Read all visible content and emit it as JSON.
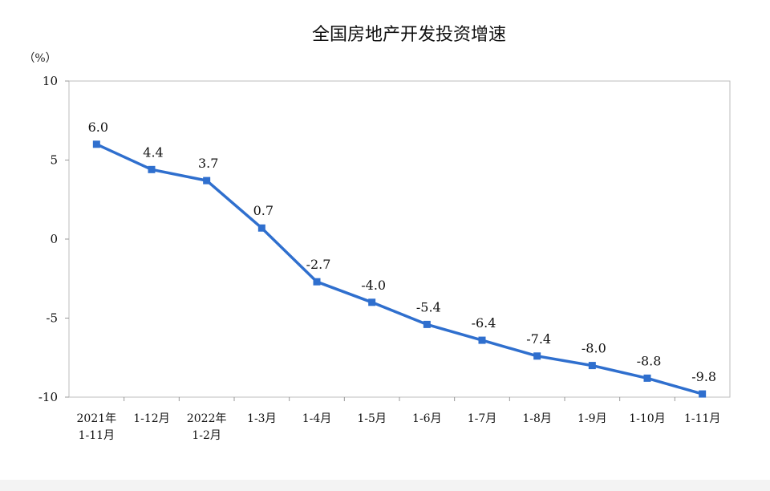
{
  "chart_data": {
    "type": "line",
    "title": "全国房地产开发投资增速",
    "ylabel": "（%）",
    "ylim": [
      -10,
      10
    ],
    "yticks": [
      10,
      5,
      0,
      -5,
      -10
    ],
    "categories": [
      [
        "2021年",
        "1-11月"
      ],
      [
        "1-12月"
      ],
      [
        "2022年",
        "1-2月"
      ],
      [
        "1-3月"
      ],
      [
        "1-4月"
      ],
      [
        "1-5月"
      ],
      [
        "1-6月"
      ],
      [
        "1-7月"
      ],
      [
        "1-8月"
      ],
      [
        "1-9月"
      ],
      [
        "1-10月"
      ],
      [
        "1-11月"
      ]
    ],
    "series": [
      {
        "values": [
          6.0,
          4.4,
          3.7,
          0.7,
          -2.7,
          -4.0,
          -5.4,
          -6.4,
          -7.4,
          -8.0,
          -8.8,
          -9.8
        ],
        "labels": [
          "6.0",
          "4.4",
          "3.7",
          "0.7",
          "-2.7",
          "-4.0",
          "-5.4",
          "-6.4",
          "-7.4",
          "-8.0",
          "-8.8",
          "-9.8"
        ],
        "color": "#2f6fce"
      }
    ],
    "grid": false,
    "legend": "none"
  }
}
